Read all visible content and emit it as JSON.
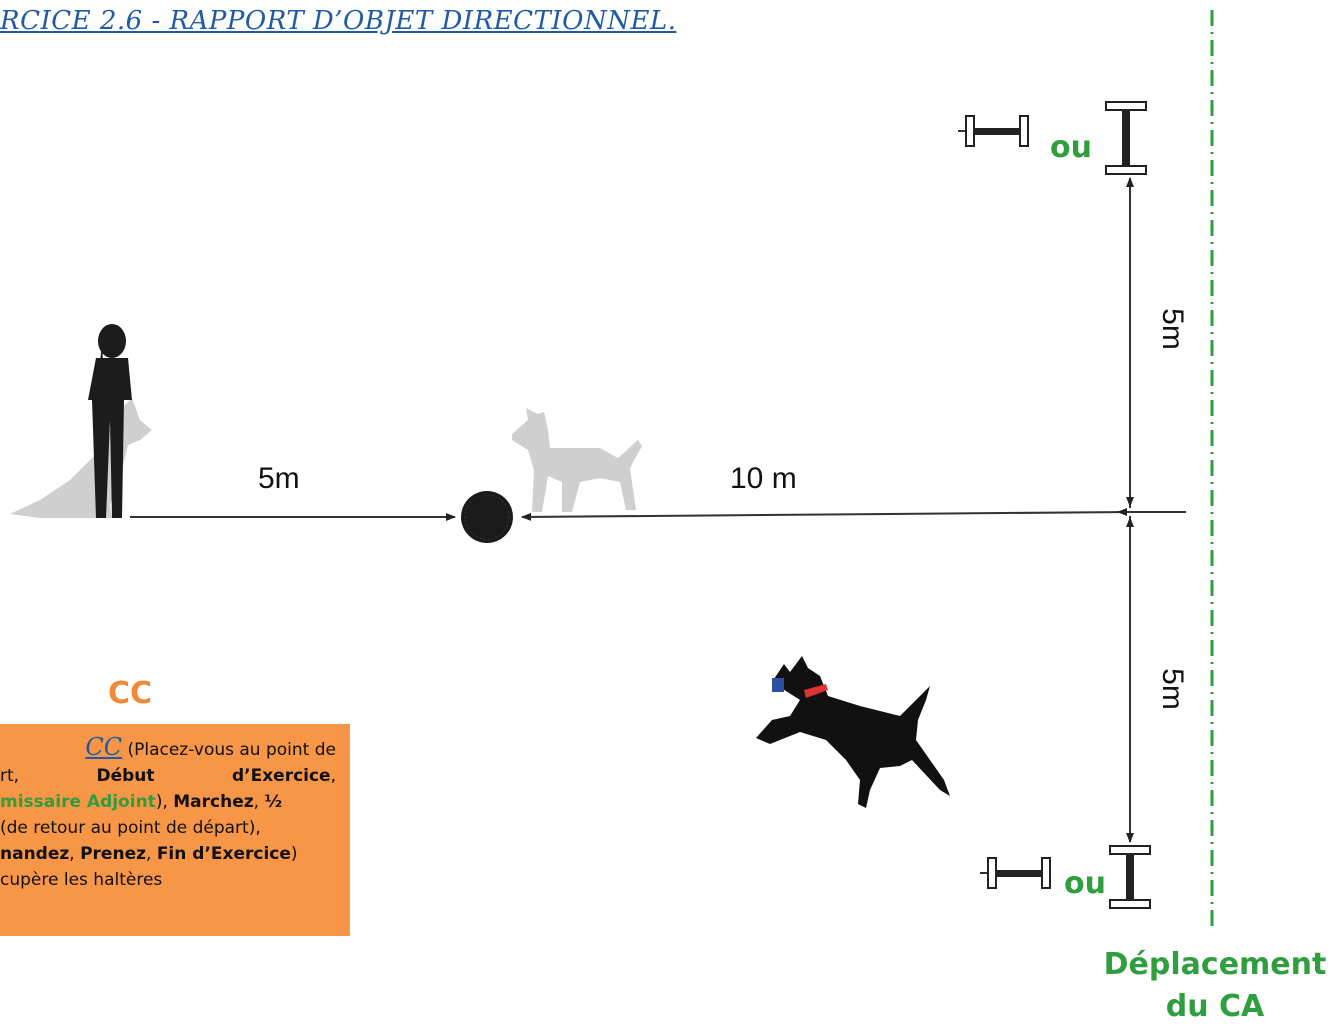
{
  "title": "RCICE 2.6 - RAPPORT D’OBJET DIRECTIONNEL.",
  "distances": {
    "handler_to_object": "5m",
    "object_to_cross": "10 m",
    "cross_to_top": "5m",
    "cross_to_bottom": "5m"
  },
  "ou_top": "ou",
  "ou_bottom": "ou",
  "cc_label": "CC",
  "note": {
    "cc": "CC",
    "line1_rest": " (Placez-vous au point de",
    "line2_a": "rt,",
    "line2_b": "Début",
    "line2_c": "d’Exercice",
    "line2_d": ",",
    "line3_green": "missaire Adjoint",
    "line3_a": "), ",
    "line3_b": "Marchez",
    "line3_c": ", ",
    "line3_d": "½",
    "line4": " (de retour au point de départ),",
    "line5_a": "nandez",
    "line5_b": ", ",
    "line5_c": "Prenez",
    "line5_d": ", ",
    "line5_e": "Fin d’Exercice",
    "line5_f": ")",
    "line6": "cupère les haltères"
  },
  "deplacement": [
    "Déplacement",
    "du CA"
  ],
  "colors": {
    "green": "#2e9e3e",
    "orange": "#f79646",
    "blue": "#1f5aa6"
  }
}
